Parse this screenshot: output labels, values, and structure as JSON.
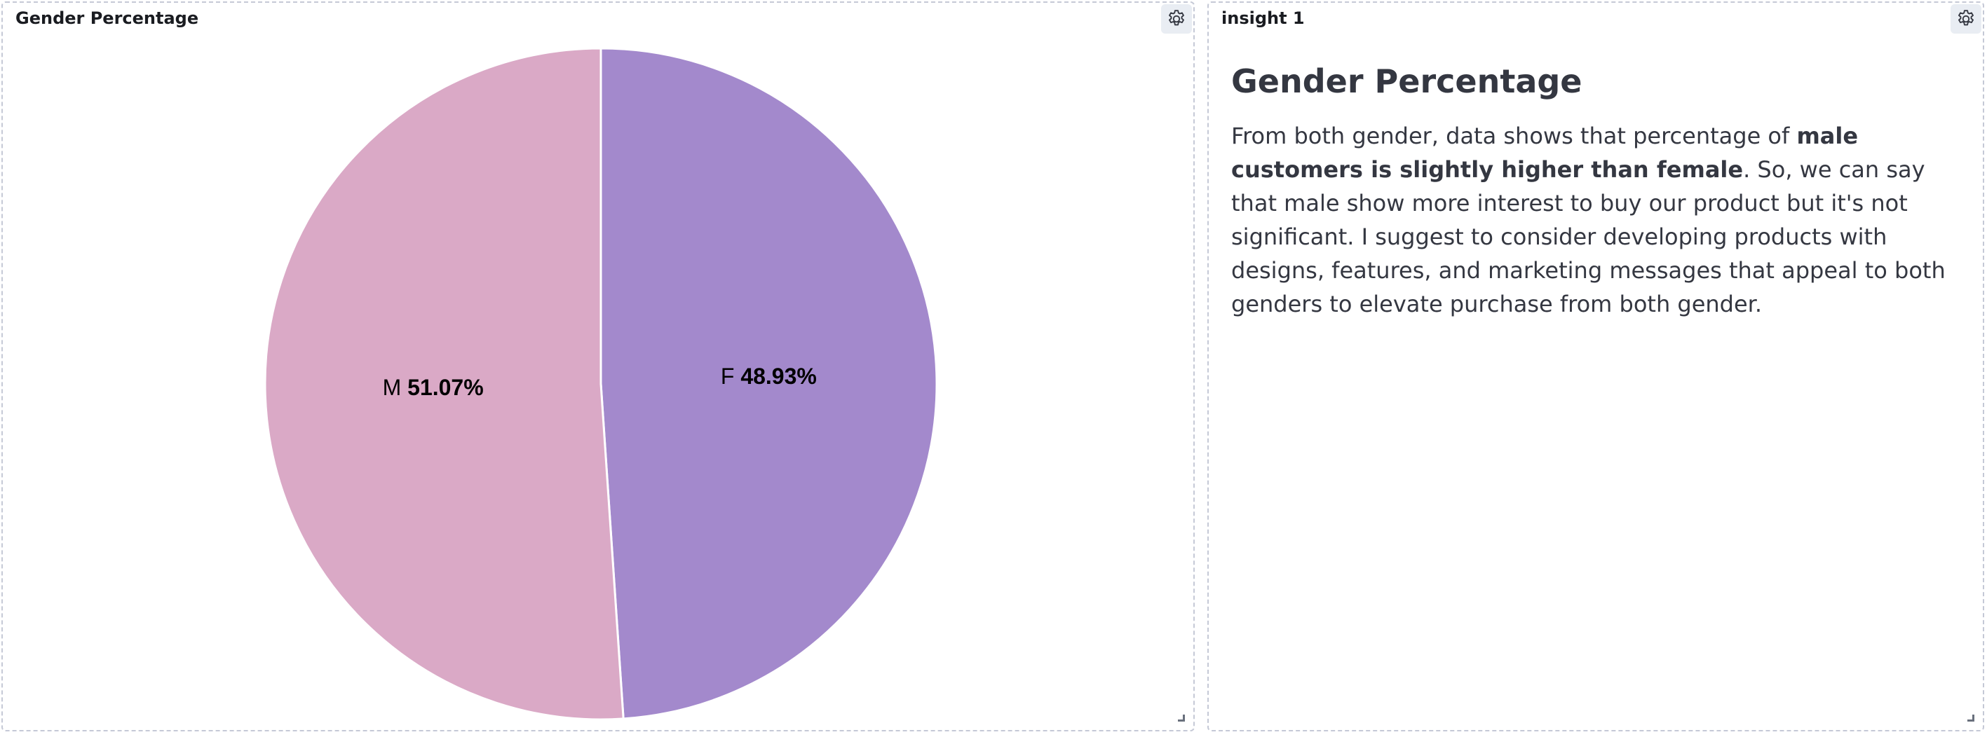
{
  "panels": {
    "chart_panel": {
      "title": "Gender Percentage"
    },
    "insight_panel": {
      "title": "insight 1",
      "heading": "Gender Percentage",
      "text_before": "From both gender, data shows that percentage of ",
      "text_bold": "male customers is slightly higher than female",
      "text_after": ". So, we can say that male show more interest to buy our product but it's not significant. I suggest to consider developing products with designs, features, and marketing messages that appeal to both genders to elevate purchase from both gender."
    }
  },
  "icons": {
    "panel_options": "gear-icon",
    "resize": "resize-handle-icon"
  },
  "colors": {
    "female": "#a389cc",
    "male": "#daa9c6",
    "separator": "#ffffff"
  },
  "chart_data": {
    "type": "pie",
    "slices": [
      {
        "label": "F",
        "value": 48.93,
        "display": "48.93%",
        "color": "#a389cc"
      },
      {
        "label": "M",
        "value": 51.07,
        "display": "51.07%",
        "color": "#daa9c6"
      }
    ],
    "start": "12 o'clock",
    "direction": "clockwise"
  }
}
